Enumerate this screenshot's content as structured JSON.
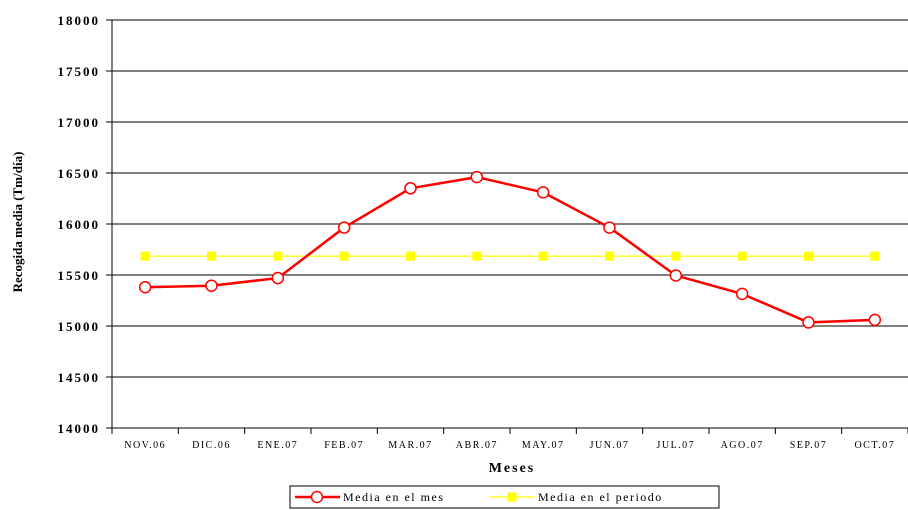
{
  "chart_data": {
    "type": "line",
    "title": "",
    "xlabel": "Meses",
    "ylabel": "Recogida media (Tm/día)",
    "categories": [
      "NOV.06",
      "DIC.06",
      "ENE.07",
      "FEB.07",
      "MAR.07",
      "ABR.07",
      "MAY.07",
      "JUN.07",
      "JUL.07",
      "AGO.07",
      "SEP.07",
      "OCT.07"
    ],
    "ylim": [
      14000,
      18000
    ],
    "yticks": [
      14000,
      14500,
      15000,
      15500,
      16000,
      16500,
      17000,
      17500,
      18000
    ],
    "ytick_labels": [
      "14000",
      "14500",
      "15000",
      "15500",
      "16000",
      "16500",
      "17000",
      "17500",
      "18000"
    ],
    "grid": "horizontal",
    "legend_position": "bottom",
    "series": [
      {
        "name": "Media en el mes",
        "color": "#ff0000",
        "marker": "circle",
        "values": [
          15380,
          15395,
          15470,
          15965,
          16350,
          16460,
          16310,
          15965,
          15495,
          15315,
          15035,
          15060
        ]
      },
      {
        "name": "Media en el periodo",
        "color": "#ffff00",
        "marker": "square",
        "values": [
          15685,
          15685,
          15685,
          15685,
          15685,
          15685,
          15685,
          15685,
          15685,
          15685,
          15685,
          15685
        ]
      }
    ]
  }
}
